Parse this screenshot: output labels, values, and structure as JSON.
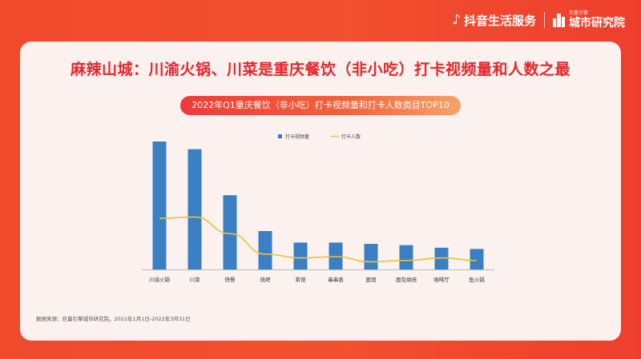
{
  "brand": {
    "app_name": "抖音生活服务",
    "lab_small": "巨量引擎",
    "lab_name": "城市研究院"
  },
  "headline": "麻辣山城：川渝火锅、川菜是重庆餐饮（非小吃）打卡视频量和人数之最",
  "source": "数据来源：巨量引擎城市研究院，2022年1月1日-2022年3月31日",
  "colors": {
    "bar": "#3a7fc4",
    "line": "#f2c036",
    "title_red": "#e4262a"
  },
  "chart_data": {
    "type": "bar",
    "title": "2022年Q1重庆餐饮（非小吃）打卡视频量和打卡人数类目TOP10",
    "categories": [
      "川渝火锅",
      "川菜",
      "快餐",
      "烧烤",
      "茶馆",
      "串串香",
      "面馆",
      "面包烘焙",
      "咖啡厅",
      "鱼火锅"
    ],
    "series": [
      {
        "name": "打卡视频量",
        "type": "bar",
        "values": [
          100,
          94,
          58,
          30,
          21,
          21,
          20,
          19,
          17,
          16
        ]
      },
      {
        "name": "打卡人数",
        "type": "line",
        "values": [
          40,
          41,
          28,
          12,
          9,
          10,
          6,
          7,
          9,
          7
        ]
      }
    ],
    "ylim": [
      0,
      100
    ],
    "legend_position": "top",
    "grid": false
  }
}
